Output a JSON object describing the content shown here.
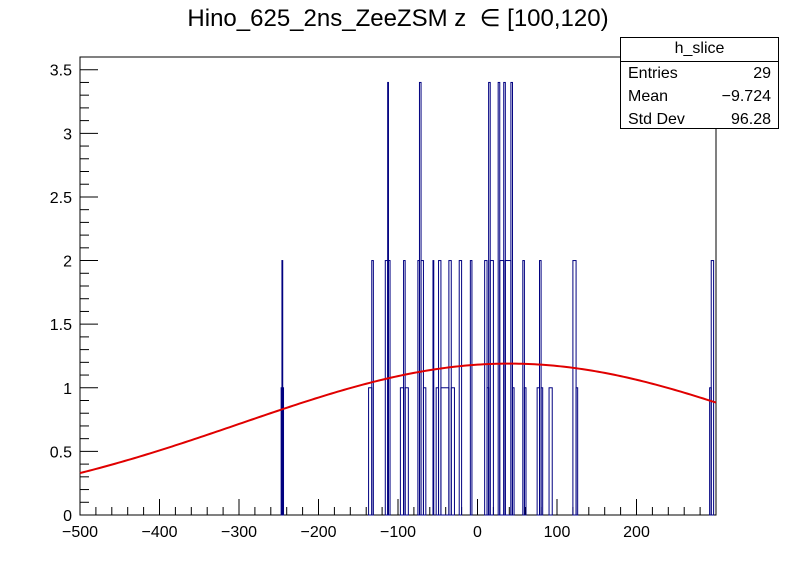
{
  "title": "Hino_625_2ns_ZeeZSM z  ∈ [100,120)",
  "stats": {
    "name": "h_slice",
    "rows": [
      {
        "label": "Entries",
        "value": "29"
      },
      {
        "label": "Mean",
        "value": "−9.724"
      },
      {
        "label": "Std Dev",
        "value": "96.28"
      }
    ]
  },
  "chart_data": {
    "type": "bar",
    "title": "Hino_625_2ns_ZeeZSM z  ∈ [100,120)",
    "xlabel": "",
    "ylabel": "",
    "xlim": [
      -500,
      300
    ],
    "ylim": [
      0,
      3.6
    ],
    "x_ticks": [
      -500,
      -400,
      -300,
      -200,
      -100,
      0,
      100,
      200
    ],
    "x_tick_labels": [
      "−500",
      "−400",
      "−300",
      "−200",
      "−100",
      "0",
      "100",
      "200"
    ],
    "y_ticks": [
      0,
      0.5,
      1,
      1.5,
      2,
      2.5,
      3,
      3.5
    ],
    "y_tick_labels": [
      "0",
      "0.5",
      "1",
      "1.5",
      "2",
      "2.5",
      "3",
      "3.5"
    ],
    "histogram_color": "#000080",
    "fit_color": "#e00000",
    "bins": [
      {
        "x0": -247,
        "x1": -246,
        "value": 1
      },
      {
        "x0": -246,
        "x1": -245,
        "value": 2
      },
      {
        "x0": -245,
        "x1": -244,
        "value": 1
      },
      {
        "x0": -137,
        "x1": -133,
        "value": 1
      },
      {
        "x0": -133,
        "x1": -131,
        "value": 2
      },
      {
        "x0": -116,
        "x1": -113,
        "value": 2
      },
      {
        "x0": -113,
        "x1": -112,
        "value": 3.4
      },
      {
        "x0": -112,
        "x1": -110,
        "value": 2
      },
      {
        "x0": -97,
        "x1": -93,
        "value": 1
      },
      {
        "x0": -93,
        "x1": -91,
        "value": 2
      },
      {
        "x0": -91,
        "x1": -87,
        "value": 1
      },
      {
        "x0": -75,
        "x1": -73,
        "value": 2
      },
      {
        "x0": -73,
        "x1": -71,
        "value": 3.4
      },
      {
        "x0": -71,
        "x1": -68,
        "value": 2
      },
      {
        "x0": -68,
        "x1": -65,
        "value": 1
      },
      {
        "x0": -56,
        "x1": -55,
        "value": 2
      },
      {
        "x0": -52,
        "x1": -49,
        "value": 1
      },
      {
        "x0": -49,
        "x1": -46,
        "value": 2
      },
      {
        "x0": -46,
        "x1": -36,
        "value": 1
      },
      {
        "x0": -36,
        "x1": -33,
        "value": 2
      },
      {
        "x0": -33,
        "x1": -29,
        "value": 1
      },
      {
        "x0": -23,
        "x1": -20,
        "value": 2
      },
      {
        "x0": -9,
        "x1": -7,
        "value": 2
      },
      {
        "x0": 9,
        "x1": 12,
        "value": 2
      },
      {
        "x0": 12,
        "x1": 14,
        "value": 1
      },
      {
        "x0": 14,
        "x1": 16,
        "value": 3.4
      },
      {
        "x0": 16,
        "x1": 20,
        "value": 2
      },
      {
        "x0": 26,
        "x1": 28,
        "value": 3.4
      },
      {
        "x0": 28,
        "x1": 33,
        "value": 2
      },
      {
        "x0": 33,
        "x1": 35,
        "value": 3.4
      },
      {
        "x0": 35,
        "x1": 42,
        "value": 2
      },
      {
        "x0": 42,
        "x1": 44,
        "value": 3.4
      },
      {
        "x0": 44,
        "x1": 46,
        "value": 1
      },
      {
        "x0": 57,
        "x1": 59,
        "value": 2
      },
      {
        "x0": 59,
        "x1": 61,
        "value": 1
      },
      {
        "x0": 75,
        "x1": 78,
        "value": 1
      },
      {
        "x0": 78,
        "x1": 80,
        "value": 2
      },
      {
        "x0": 80,
        "x1": 82,
        "value": 1
      },
      {
        "x0": 90,
        "x1": 94,
        "value": 1
      },
      {
        "x0": 120,
        "x1": 124,
        "value": 2
      },
      {
        "x0": 124,
        "x1": 126,
        "value": 1
      },
      {
        "x0": 292,
        "x1": 294,
        "value": 1
      },
      {
        "x0": 294,
        "x1": 297,
        "value": 2
      }
    ],
    "fit": {
      "name": "gaus",
      "amplitude": 1.19,
      "mean": 40,
      "sigma": 337
    }
  }
}
